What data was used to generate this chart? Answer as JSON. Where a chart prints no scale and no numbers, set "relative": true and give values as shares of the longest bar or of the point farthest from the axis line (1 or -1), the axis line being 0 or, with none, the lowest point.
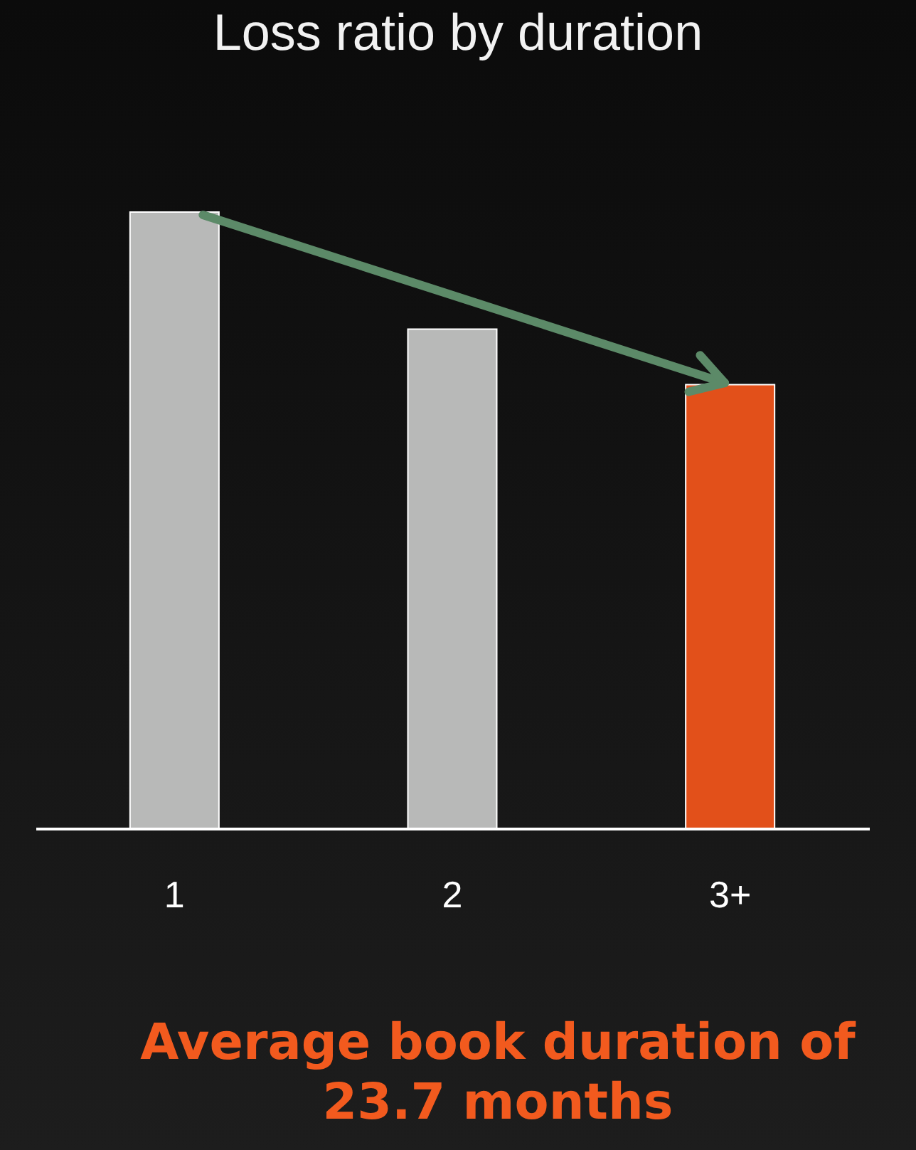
{
  "chart_data": {
    "type": "bar",
    "title": "Loss ratio by duration",
    "relative": true,
    "categories": [
      "1",
      "2",
      "3+"
    ],
    "values": [
      1,
      0.81,
      0.72
    ],
    "colors": [
      "#b8b9b8",
      "#b8b9b8",
      "#e2501a"
    ],
    "annotations": [
      "Average book duration of 23.7 months"
    ]
  }
}
